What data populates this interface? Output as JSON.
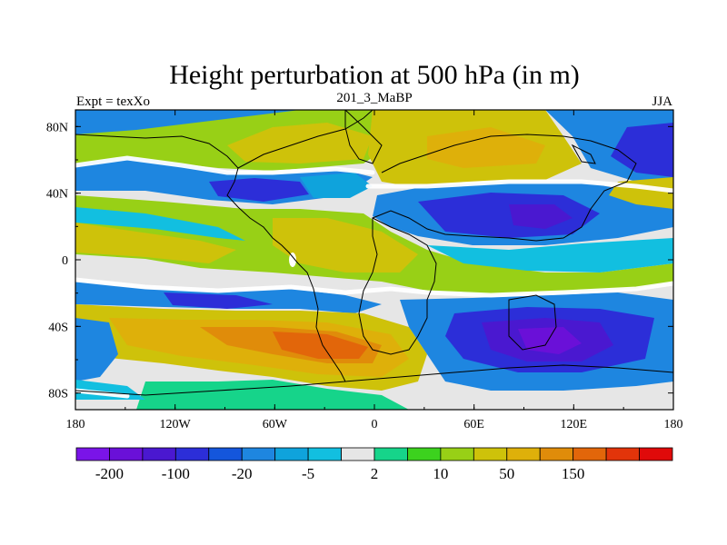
{
  "chart_data": {
    "type": "heatmap",
    "title": "Height perturbation at 500 hPa (in m)",
    "left_string": "Expt = texXo",
    "center_string": "201_3_MaBP",
    "right_string": "JJA",
    "x_ticks": [
      "180",
      "120W",
      "60W",
      "0",
      "60E",
      "120E",
      "180"
    ],
    "y_ticks": [
      "80N",
      "40N",
      "0",
      "40S",
      "80S"
    ],
    "xlim": [
      -180,
      180
    ],
    "ylim": [
      -90,
      90
    ],
    "x_tick_values": [
      -180,
      -120,
      -60,
      0,
      60,
      120,
      180
    ],
    "y_tick_values": [
      80,
      40,
      0,
      -40,
      -80
    ],
    "colorbar": {
      "colors": [
        "#7a14e8",
        "#6a10d8",
        "#4a18d0",
        "#2c2ed8",
        "#1456dc",
        "#1e86e0",
        "#0fa3dc",
        "#12bfe0",
        "#e6e6e6",
        "#16d48a",
        "#3cd21e",
        "#98d016",
        "#cec20a",
        "#deb00a",
        "#e08c0a",
        "#e2660a",
        "#e2340a",
        "#e00a0a"
      ],
      "labels": [
        "-200",
        "-100",
        "-20",
        "-5",
        "2",
        "10",
        "50",
        "150"
      ]
    }
  }
}
